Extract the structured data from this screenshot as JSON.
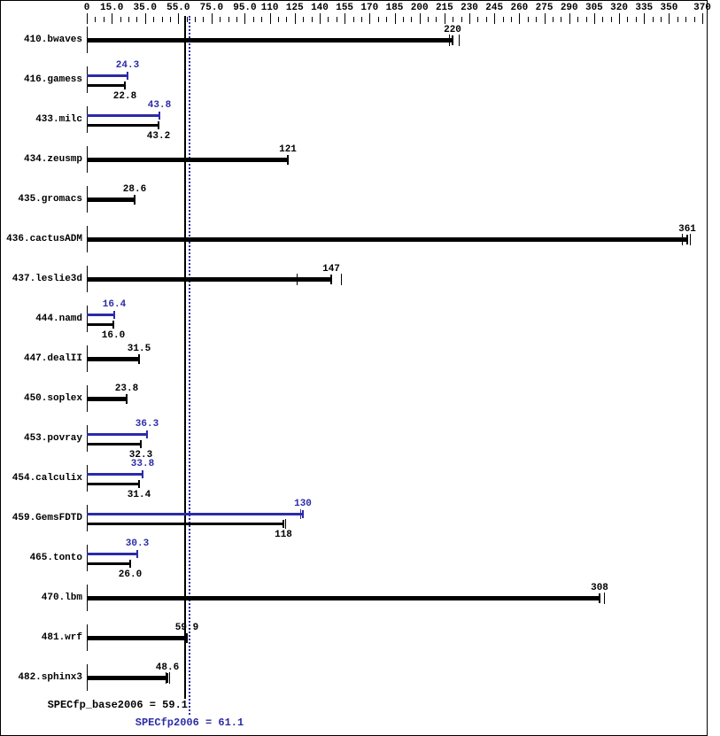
{
  "colors": {
    "background": "#ffffff",
    "border": "#000000",
    "base": "#000000",
    "peak": "#2b2ba8"
  },
  "chart_data": {
    "type": "bar",
    "orientation": "horizontal",
    "title": "",
    "xlabel": "",
    "ylabel": "",
    "x_axis": {
      "min": 0,
      "max": 370,
      "minor_tick_step": 5,
      "labeled_ticks": [
        {
          "value": 0,
          "label": "0"
        },
        {
          "value": 15,
          "label": "15.0"
        },
        {
          "value": 35,
          "label": "35.0"
        },
        {
          "value": 55,
          "label": "55.0"
        },
        {
          "value": 75,
          "label": "75.0"
        },
        {
          "value": 95,
          "label": "95.0"
        },
        {
          "value": 110,
          "label": "110"
        },
        {
          "value": 125,
          "label": "125"
        },
        {
          "value": 140,
          "label": "140"
        },
        {
          "value": 155,
          "label": "155"
        },
        {
          "value": 170,
          "label": "170"
        },
        {
          "value": 185,
          "label": "185"
        },
        {
          "value": 200,
          "label": "200"
        },
        {
          "value": 215,
          "label": "215"
        },
        {
          "value": 230,
          "label": "230"
        },
        {
          "value": 245,
          "label": "245"
        },
        {
          "value": 260,
          "label": "260"
        },
        {
          "value": 275,
          "label": "275"
        },
        {
          "value": 290,
          "label": "290"
        },
        {
          "value": 305,
          "label": "305"
        },
        {
          "value": 320,
          "label": "320"
        },
        {
          "value": 335,
          "label": "335"
        },
        {
          "value": 350,
          "label": "350"
        },
        {
          "value": 370,
          "label": "370"
        }
      ]
    },
    "benchmarks": [
      {
        "name": "410.bwaves",
        "base": 220,
        "base_label": "220",
        "peak": null,
        "peak_label": null,
        "base_marks": [
          218,
          223.5
        ],
        "peak_marks": []
      },
      {
        "name": "416.gamess",
        "base": 22.8,
        "base_label": "22.8",
        "peak": 24.3,
        "peak_label": "24.3",
        "base_marks": [],
        "peak_marks": []
      },
      {
        "name": "433.milc",
        "base": 43.2,
        "base_label": "43.2",
        "peak": 43.8,
        "peak_label": "43.8",
        "base_marks": [],
        "peak_marks": []
      },
      {
        "name": "434.zeusmp",
        "base": 121,
        "base_label": "121",
        "peak": null,
        "peak_label": null,
        "base_marks": [],
        "peak_marks": []
      },
      {
        "name": "435.gromacs",
        "base": 28.6,
        "base_label": "28.6",
        "peak": null,
        "peak_label": null,
        "base_marks": [],
        "peak_marks": []
      },
      {
        "name": "436.cactusADM",
        "base": 361,
        "base_label": "361",
        "peak": null,
        "peak_label": null,
        "base_marks": [
          358,
          362.5
        ],
        "peak_marks": []
      },
      {
        "name": "437.leslie3d",
        "base": 147,
        "base_label": "147",
        "peak": null,
        "peak_label": null,
        "base_marks": [
          126,
          153
        ],
        "peak_marks": []
      },
      {
        "name": "444.namd",
        "base": 16.0,
        "base_label": "16.0",
        "peak": 16.4,
        "peak_label": "16.4",
        "base_marks": [],
        "peak_marks": []
      },
      {
        "name": "447.dealII",
        "base": 31.5,
        "base_label": "31.5",
        "peak": null,
        "peak_label": null,
        "base_marks": [],
        "peak_marks": []
      },
      {
        "name": "450.soplex",
        "base": 23.8,
        "base_label": "23.8",
        "peak": null,
        "peak_label": null,
        "base_marks": [],
        "peak_marks": []
      },
      {
        "name": "453.povray",
        "base": 32.3,
        "base_label": "32.3",
        "peak": 36.3,
        "peak_label": "36.3",
        "base_marks": [],
        "peak_marks": []
      },
      {
        "name": "454.calculix",
        "base": 31.4,
        "base_label": "31.4",
        "peak": 33.8,
        "peak_label": "33.8",
        "base_marks": [],
        "peak_marks": []
      },
      {
        "name": "459.GemsFDTD",
        "base": 118,
        "base_label": "118",
        "peak": 130,
        "peak_label": "130",
        "base_marks": [
          119.5
        ],
        "peak_marks": [
          128.3
        ]
      },
      {
        "name": "465.tonto",
        "base": 26.0,
        "base_label": "26.0",
        "peak": 30.3,
        "peak_label": "30.3",
        "base_marks": [],
        "peak_marks": []
      },
      {
        "name": "470.lbm",
        "base": 308,
        "base_label": "308",
        "peak": null,
        "peak_label": null,
        "base_marks": [
          311
        ],
        "peak_marks": []
      },
      {
        "name": "481.wrf",
        "base": 59.9,
        "base_label": "59.9",
        "peak": null,
        "peak_label": null,
        "base_marks": [],
        "peak_marks": []
      },
      {
        "name": "482.sphinx3",
        "base": 48.6,
        "base_label": "48.6",
        "peak": null,
        "peak_label": null,
        "base_marks": [
          47.3,
          49.6
        ],
        "peak_marks": []
      }
    ],
    "reference_lines": [
      {
        "value": 59.1,
        "style": "solid",
        "series": "base"
      },
      {
        "value": 61.1,
        "style": "dotted",
        "series": "peak"
      }
    ],
    "summary": [
      {
        "text": "SPECfp_base2006 = 59.1",
        "value": 59.1,
        "series": "base"
      },
      {
        "text": "SPECfp2006 = 61.1",
        "value": 61.1,
        "series": "peak"
      }
    ],
    "legend_position": "none",
    "grid": false
  }
}
